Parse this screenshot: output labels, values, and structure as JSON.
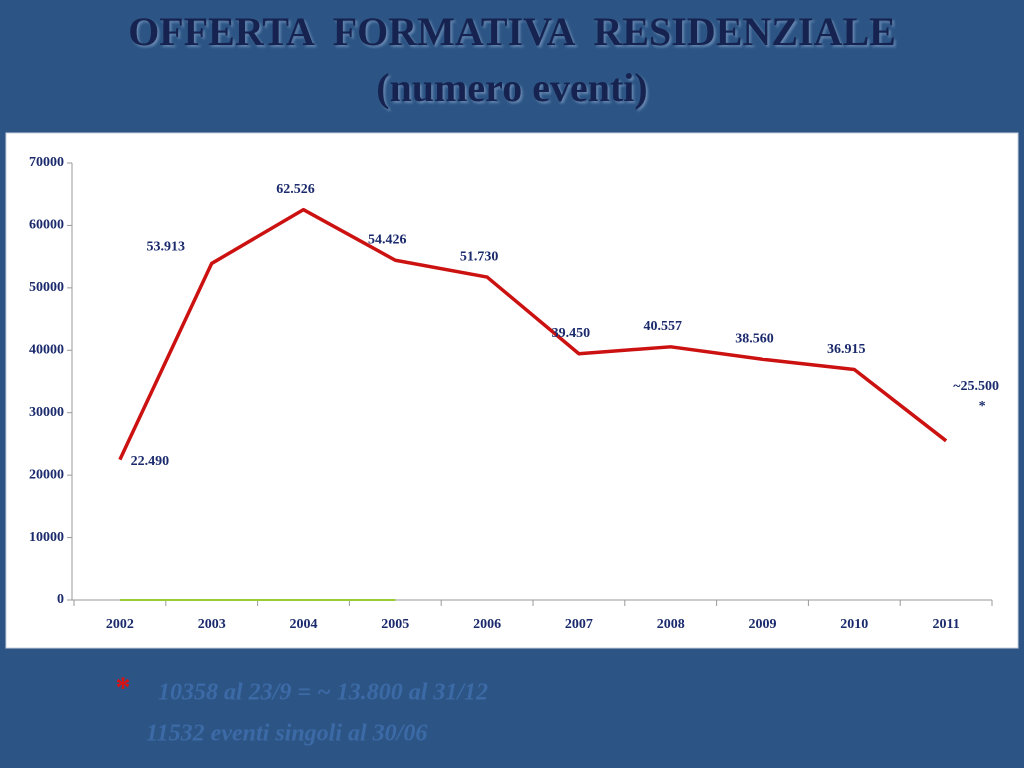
{
  "title": "OFFERTA  FORMATIVA  RESIDENZIALE",
  "subtitle": "(numero eventi)",
  "chart_data": {
    "type": "line",
    "categories": [
      "2002",
      "2003",
      "2004",
      "2005",
      "2006",
      "2007",
      "2008",
      "2009",
      "2010",
      "2011"
    ],
    "series": [
      {
        "color": "#cc1111",
        "values": [
          22490,
          53913,
          62526,
          54426,
          51730,
          39450,
          40557,
          38560,
          36915,
          25500
        ],
        "value_labels": [
          "22.490",
          "53.913",
          "62.526",
          "54.426",
          "51.730",
          "39.450",
          "40.557",
          "38.560",
          "36.915",
          "~25.500"
        ]
      },
      {
        "color": "#9acd32",
        "values": [
          0,
          0,
          0,
          0,
          null,
          null,
          null,
          null,
          null,
          null
        ]
      }
    ],
    "annotation": "*",
    "ylim": [
      0,
      70000
    ],
    "yticks": [
      0,
      10000,
      20000,
      30000,
      40000,
      50000,
      60000,
      70000
    ]
  },
  "footnote": {
    "marker": "*",
    "lines": [
      "10358 al 23/9 = ~ 13.800 al 31/12",
      "11532 eventi singoli al 30/06"
    ]
  }
}
